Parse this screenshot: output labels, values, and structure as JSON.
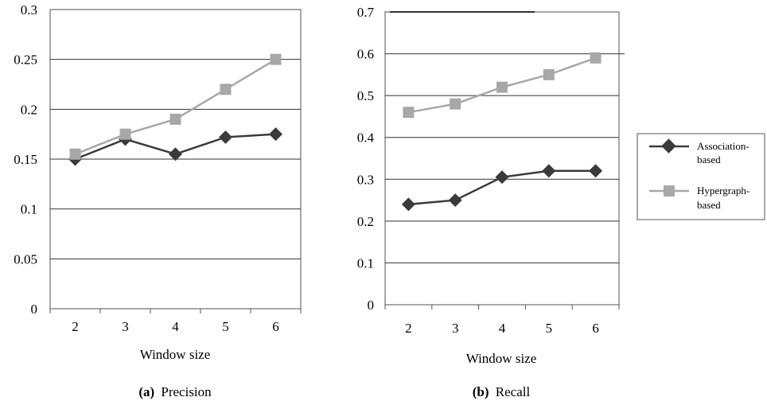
{
  "series_styles": {
    "Association-based": {
      "color": "#3a3a3a",
      "marker": "diamond"
    },
    "Hypergraph-based": {
      "color": "#a8a8a8",
      "marker": "square"
    }
  },
  "legend": {
    "items": [
      {
        "lines": [
          "Association-",
          "based"
        ],
        "series": "Association-based"
      },
      {
        "lines": [
          "Hypergraph-",
          "based"
        ],
        "series": "Hypergraph-based"
      }
    ]
  },
  "chart_data": [
    {
      "type": "line",
      "caption_prefix": "(a)",
      "caption_text": "Precision",
      "xlabel": "Window size",
      "ylabel": "",
      "x": [
        "2",
        "3",
        "4",
        "5",
        "6"
      ],
      "ylim": [
        0,
        0.3
      ],
      "yticks": [
        "0",
        "0.05",
        "0.1",
        "0.15",
        "0.2",
        "0.25",
        "0.3"
      ],
      "grid": true,
      "series": [
        {
          "name": "Association-based",
          "values": [
            0.15,
            0.17,
            0.155,
            0.172,
            0.175
          ]
        },
        {
          "name": "Hypergraph-based",
          "values": [
            0.155,
            0.175,
            0.19,
            0.22,
            0.25
          ]
        }
      ]
    },
    {
      "type": "line",
      "caption_prefix": "(b)",
      "caption_text": "Recall",
      "xlabel": "Window size",
      "ylabel": "",
      "x": [
        "2",
        "3",
        "4",
        "5",
        "6"
      ],
      "ylim": [
        0,
        0.7
      ],
      "yticks": [
        "0",
        "0.1",
        "0.2",
        "0.3",
        "0.4",
        "0.5",
        "0.6",
        "0.7"
      ],
      "grid": true,
      "series": [
        {
          "name": "Association-based",
          "values": [
            0.24,
            0.25,
            0.305,
            0.32,
            0.32
          ]
        },
        {
          "name": "Hypergraph-based",
          "values": [
            0.46,
            0.48,
            0.52,
            0.55,
            0.59
          ]
        }
      ]
    }
  ]
}
